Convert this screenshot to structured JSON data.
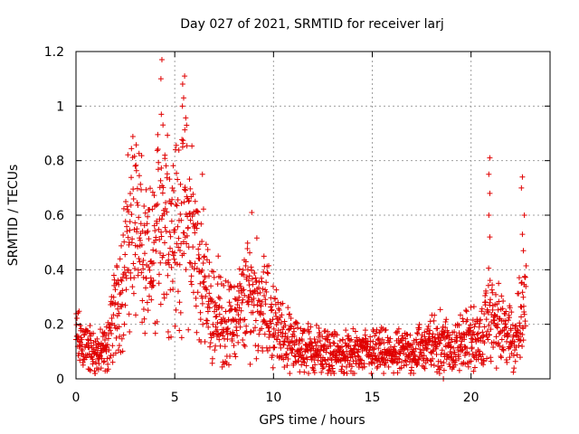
{
  "chart_data": {
    "type": "scatter",
    "title": "Day 027 of 2021, SRMTID for receiver larj",
    "xlabel": "GPS time / hours",
    "ylabel": "SRMTID / TECUs",
    "xlim": [
      0,
      24
    ],
    "ylim": [
      0,
      1.2
    ],
    "xticks": [
      0,
      5,
      10,
      15,
      20
    ],
    "xtick_labels": [
      "0",
      "5",
      "10",
      "15",
      "20"
    ],
    "yticks": [
      0,
      0.2,
      0.4,
      0.6,
      0.8,
      1.0,
      1.2
    ],
    "ytick_labels": [
      "0",
      "0.2",
      "0.4",
      "0.6",
      "0.8",
      "1",
      "1.2"
    ],
    "grid": true,
    "marker": "+",
    "color": "#e00000",
    "series": [
      {
        "name": "SRMTID larj",
        "envelope": {
          "x": [
            0,
            0.5,
            1.0,
            1.5,
            2.0,
            2.5,
            3.0,
            3.5,
            4.0,
            4.3,
            4.6,
            5.0,
            5.4,
            5.8,
            6.3,
            6.8,
            7.3,
            7.8,
            8.3,
            8.9,
            9.4,
            10.0,
            10.5,
            11.0,
            12.0,
            13.0,
            14.0,
            15.0,
            16.0,
            17.0,
            17.7,
            18.5,
            19.0,
            19.5,
            20.0,
            20.5,
            20.9,
            21.3,
            21.8,
            22.2,
            22.5,
            22.8
          ],
          "y": [
            0.15,
            0.12,
            0.09,
            0.1,
            0.25,
            0.42,
            0.65,
            0.38,
            0.45,
            0.68,
            0.6,
            0.52,
            0.62,
            0.55,
            0.4,
            0.25,
            0.22,
            0.2,
            0.25,
            0.32,
            0.28,
            0.2,
            0.16,
            0.12,
            0.11,
            0.09,
            0.09,
            0.1,
            0.09,
            0.1,
            0.12,
            0.14,
            0.11,
            0.13,
            0.15,
            0.13,
            0.24,
            0.2,
            0.16,
            0.14,
            0.22,
            0.3
          ]
        },
        "spikes": [
          {
            "x": 4.35,
            "y": 1.17
          },
          {
            "x": 4.3,
            "y": 1.1
          },
          {
            "x": 4.32,
            "y": 0.97
          },
          {
            "x": 5.5,
            "y": 1.11
          },
          {
            "x": 5.45,
            "y": 1.03
          },
          {
            "x": 5.6,
            "y": 0.93
          },
          {
            "x": 5.4,
            "y": 0.85
          },
          {
            "x": 3.0,
            "y": 0.78
          },
          {
            "x": 4.5,
            "y": 0.82
          },
          {
            "x": 6.4,
            "y": 0.75
          },
          {
            "x": 20.95,
            "y": 0.81
          },
          {
            "x": 20.9,
            "y": 0.75
          },
          {
            "x": 20.95,
            "y": 0.68
          },
          {
            "x": 20.9,
            "y": 0.6
          },
          {
            "x": 20.95,
            "y": 0.52
          },
          {
            "x": 22.6,
            "y": 0.74
          },
          {
            "x": 22.55,
            "y": 0.7
          },
          {
            "x": 22.7,
            "y": 0.6
          },
          {
            "x": 22.6,
            "y": 0.53
          },
          {
            "x": 22.65,
            "y": 0.47
          },
          {
            "x": 8.9,
            "y": 0.61
          },
          {
            "x": 7.2,
            "y": 0.45
          },
          {
            "x": 18.6,
            "y": 0.0
          }
        ]
      }
    ]
  }
}
